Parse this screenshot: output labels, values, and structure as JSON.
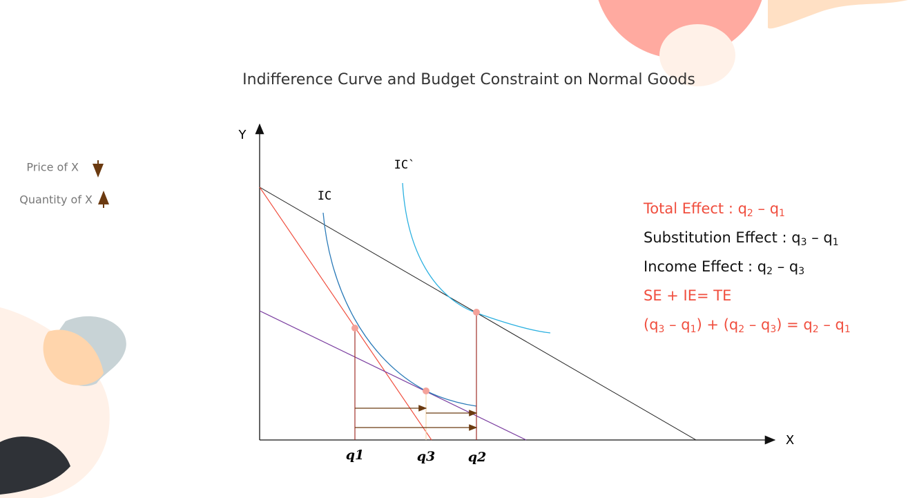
{
  "title": "Indifference Curve and Budget Constraint on Normal Goods",
  "legend": [
    {
      "label": "Price of X"
    },
    {
      "label": "Quantity of X"
    }
  ],
  "axes": {
    "y": "Y",
    "x": "X"
  },
  "curves": {
    "ic": "IC",
    "ic_prime": "IC`"
  },
  "points": [
    "q1",
    "q3",
    "q2"
  ],
  "effects": [
    {
      "color": "#f04e3e",
      "parts": [
        {
          "text": "Total Effect : q"
        },
        {
          "sub": "2"
        },
        {
          "text": " – q"
        },
        {
          "sub": "1"
        }
      ]
    },
    {
      "color": "#111111",
      "parts": [
        {
          "text": "Substitution Effect : q"
        },
        {
          "sub": "3"
        },
        {
          "text": " – q"
        },
        {
          "sub": "1"
        }
      ]
    },
    {
      "color": "#111111",
      "parts": [
        {
          "text": "Income Effect : q"
        },
        {
          "sub": "2"
        },
        {
          "text": " – q"
        },
        {
          "sub": "3"
        }
      ]
    },
    {
      "color": "#f04e3e",
      "parts": [
        {
          "text": "SE + IE= TE"
        }
      ]
    },
    {
      "color": "#f04e3e",
      "parts": [
        {
          "text": "(q"
        },
        {
          "sub": "3"
        },
        {
          "text": " – q"
        },
        {
          "sub": "1"
        },
        {
          "text": ") + (q"
        },
        {
          "sub": "2"
        },
        {
          "text": " – q"
        },
        {
          "sub": "3"
        },
        {
          "text": ") = q"
        },
        {
          "sub": "2"
        },
        {
          "text": " – q"
        },
        {
          "sub": "1"
        }
      ]
    }
  ]
}
